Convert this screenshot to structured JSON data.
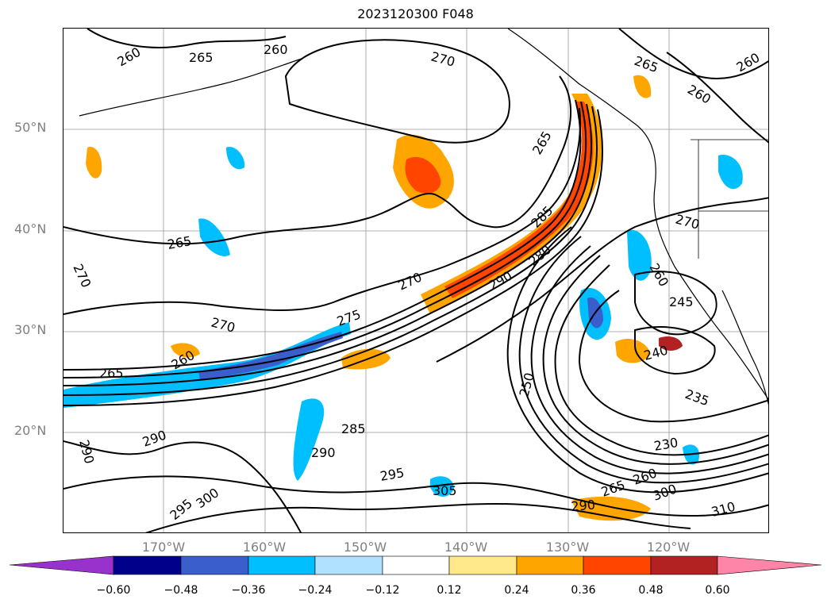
{
  "title": "2023120300 F048",
  "lat_labels": [
    "50°N",
    "40°N",
    "30°N",
    "20°N"
  ],
  "lon_labels": [
    "170°W",
    "160°W",
    "150°W",
    "140°W",
    "130°W",
    "120°W"
  ],
  "colorbar": {
    "ticks": [
      "−0.60",
      "−0.48",
      "−0.36",
      "−0.24",
      "−0.12",
      "0.12",
      "0.24",
      "0.36",
      "0.48",
      "0.60"
    ],
    "colors": [
      "#9932cc",
      "#00008b",
      "#3a5fcd",
      "#00bfff",
      "#b0e2ff",
      "#ffffff",
      "#ffe98a",
      "#ffa500",
      "#ff4500",
      "#b22222",
      "#ff85a8"
    ],
    "extend": "both"
  },
  "contour_labels": [
    {
      "text": "260"
    },
    {
      "text": "265"
    },
    {
      "text": "260"
    },
    {
      "text": "270"
    },
    {
      "text": "265"
    },
    {
      "text": "260"
    },
    {
      "text": "260"
    },
    {
      "text": "265"
    },
    {
      "text": "265"
    },
    {
      "text": "270"
    },
    {
      "text": "285"
    },
    {
      "text": "280"
    },
    {
      "text": "270"
    },
    {
      "text": "290"
    },
    {
      "text": "275"
    },
    {
      "text": "270"
    },
    {
      "text": "265"
    },
    {
      "text": "260"
    },
    {
      "text": "270"
    },
    {
      "text": "260"
    },
    {
      "text": "245"
    },
    {
      "text": "240"
    },
    {
      "text": "250"
    },
    {
      "text": "235"
    },
    {
      "text": "230"
    },
    {
      "text": "285"
    },
    {
      "text": "290"
    },
    {
      "text": "290"
    },
    {
      "text": "295"
    },
    {
      "text": "305"
    },
    {
      "text": "290"
    },
    {
      "text": "265"
    },
    {
      "text": "260"
    },
    {
      "text": "300"
    },
    {
      "text": "310"
    },
    {
      "text": "300"
    },
    {
      "text": "295"
    },
    {
      "text": "290"
    }
  ]
}
